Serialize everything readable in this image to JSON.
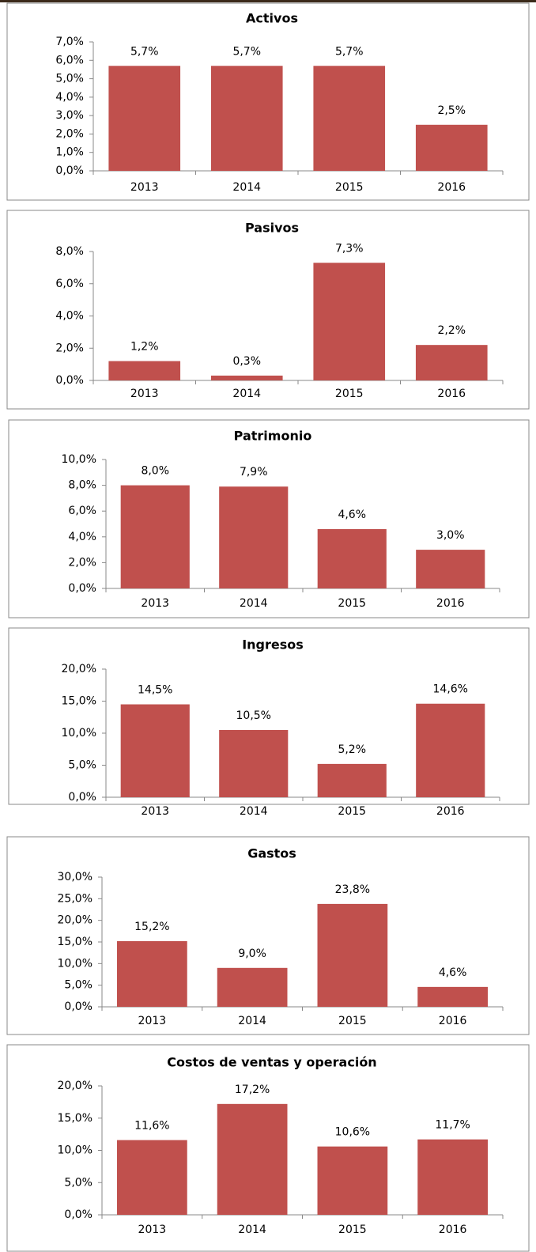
{
  "chart_data": [
    {
      "type": "bar",
      "title": "Activos",
      "categories": [
        "2013",
        "2014",
        "2015",
        "2016"
      ],
      "values": [
        5.7,
        5.7,
        5.7,
        2.5
      ],
      "value_labels": [
        "5,7%",
        "5,7%",
        "5,7%",
        "2,5%"
      ],
      "color": "#c0504d",
      "ylim": [
        0,
        7
      ],
      "yticks": [
        {
          "value": 0,
          "label": "0,0%"
        },
        {
          "value": 1,
          "label": "1,0%"
        },
        {
          "value": 2,
          "label": "2,0%"
        },
        {
          "value": 3,
          "label": "3,0%"
        },
        {
          "value": 4,
          "label": "4,0%"
        },
        {
          "value": 5,
          "label": "5,0%"
        },
        {
          "value": 6,
          "label": "6,0%"
        },
        {
          "value": 7,
          "label": "7,0%"
        }
      ]
    },
    {
      "type": "bar",
      "title": "Pasivos",
      "categories": [
        "2013",
        "2014",
        "2015",
        "2016"
      ],
      "values": [
        1.2,
        0.3,
        7.3,
        2.2
      ],
      "value_labels": [
        "1,2%",
        "0,3%",
        "7,3%",
        "2,2%"
      ],
      "color": "#c0504d",
      "ylim": [
        0,
        8
      ],
      "yticks": [
        {
          "value": 0,
          "label": "0,0%"
        },
        {
          "value": 2,
          "label": "2,0%"
        },
        {
          "value": 4,
          "label": "4,0%"
        },
        {
          "value": 6,
          "label": "6,0%"
        },
        {
          "value": 8,
          "label": "8,0%"
        }
      ]
    },
    {
      "type": "bar",
      "title": "Patrimonio",
      "categories": [
        "2013",
        "2014",
        "2015",
        "2016"
      ],
      "values": [
        8.0,
        7.9,
        4.6,
        3.0
      ],
      "value_labels": [
        "8,0%",
        "7,9%",
        "4,6%",
        "3,0%"
      ],
      "color": "#c0504d",
      "ylim": [
        0,
        10
      ],
      "yticks": [
        {
          "value": 0,
          "label": "0,0%"
        },
        {
          "value": 2,
          "label": "2,0%"
        },
        {
          "value": 4,
          "label": "4,0%"
        },
        {
          "value": 6,
          "label": "6,0%"
        },
        {
          "value": 8,
          "label": "8,0%"
        },
        {
          "value": 10,
          "label": "10,0%"
        }
      ]
    },
    {
      "type": "bar",
      "title": "Ingresos",
      "categories": [
        "2013",
        "2014",
        "2015",
        "2016"
      ],
      "values": [
        14.5,
        10.5,
        5.2,
        14.6
      ],
      "value_labels": [
        "14,5%",
        "10,5%",
        "5,2%",
        "14,6%"
      ],
      "color": "#c0504d",
      "ylim": [
        0,
        20
      ],
      "yticks": [
        {
          "value": 0,
          "label": "0,0%"
        },
        {
          "value": 5,
          "label": "5,0%"
        },
        {
          "value": 10,
          "label": "10,0%"
        },
        {
          "value": 15,
          "label": "15,0%"
        },
        {
          "value": 20,
          "label": "20,0%"
        }
      ]
    },
    {
      "type": "bar",
      "title": "Gastos",
      "categories": [
        "2013",
        "2014",
        "2015",
        "2016"
      ],
      "values": [
        15.2,
        9.0,
        23.8,
        4.6
      ],
      "value_labels": [
        "15,2%",
        "9,0%",
        "23,8%",
        "4,6%"
      ],
      "color": "#c0504d",
      "ylim": [
        0,
        30
      ],
      "yticks": [
        {
          "value": 0,
          "label": "0,0%"
        },
        {
          "value": 5,
          "label": "5,0%"
        },
        {
          "value": 10,
          "label": "10,0%"
        },
        {
          "value": 15,
          "label": "15,0%"
        },
        {
          "value": 20,
          "label": "20,0%"
        },
        {
          "value": 25,
          "label": "25,0%"
        },
        {
          "value": 30,
          "label": "30,0%"
        }
      ]
    },
    {
      "type": "bar",
      "title": "Costos de ventas y operación",
      "categories": [
        "2013",
        "2014",
        "2015",
        "2016"
      ],
      "values": [
        11.6,
        17.2,
        10.6,
        11.7
      ],
      "value_labels": [
        "11,6%",
        "17,2%",
        "10,6%",
        "11,7%"
      ],
      "color": "#c0504d",
      "ylim": [
        0,
        20
      ],
      "yticks": [
        {
          "value": 0,
          "label": "0,0%"
        },
        {
          "value": 5,
          "label": "5,0%"
        },
        {
          "value": 10,
          "label": "10,0%"
        },
        {
          "value": 15,
          "label": "15,0%"
        },
        {
          "value": 20,
          "label": "20,0%"
        }
      ]
    }
  ]
}
